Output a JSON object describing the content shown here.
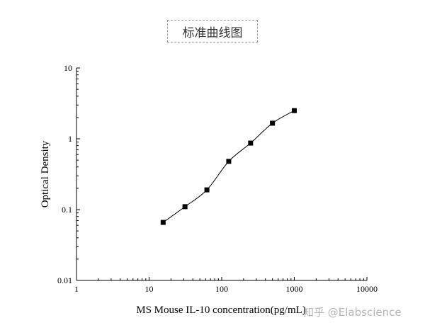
{
  "chart_data": {
    "type": "scatter",
    "title": "标准曲线图",
    "xlabel": "MS Mouse IL-10 concentration(pg/mL)",
    "ylabel": "Optical Density",
    "x_scale": "log",
    "y_scale": "log",
    "xlim": [
      1,
      10000
    ],
    "ylim": [
      0.01,
      10
    ],
    "x_ticks": [
      "1",
      "10",
      "100",
      "1000",
      "10000"
    ],
    "y_ticks": [
      "0.01",
      "0.1",
      "1",
      "10"
    ],
    "grid": false,
    "series": [
      {
        "x": [
          15.6,
          31.2,
          62.5,
          125,
          250,
          500,
          1000
        ],
        "y": [
          0.066,
          0.11,
          0.19,
          0.48,
          0.87,
          1.66,
          2.5
        ],
        "marker": "square",
        "fit_line": true,
        "color": "#000000"
      }
    ]
  },
  "watermark": "知乎 @Elabscience"
}
